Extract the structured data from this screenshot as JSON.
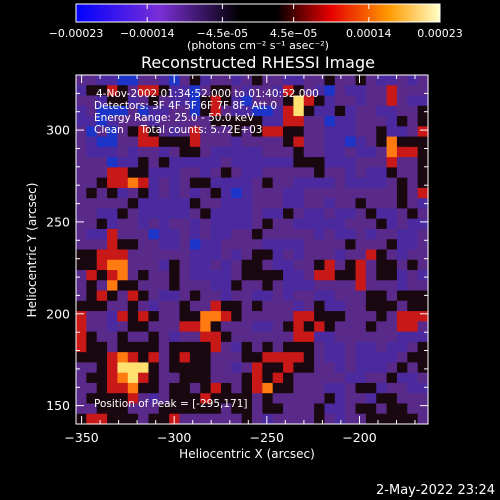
{
  "chart_data": {
    "type": "heatmap",
    "title": "Reconstructed RHESSI Image",
    "info_lines": [
      "4-Nov-2002 01:34:52.000 to 01:40:52.000",
      "Detectors: 3F 4F 5F 6F 7F 8F, Att 0",
      "Energy Range: 25.0 - 50.0 keV",
      "Clean     Total counts: 5.72E+03"
    ],
    "peak_label": "Position of Peak = [-295,171]",
    "xlabel": "Heliocentric X (arcsec)",
    "ylabel": "Heliocentric Y (arcsec)",
    "xlim": [
      -353,
      -163
    ],
    "ylim": [
      140,
      330
    ],
    "xticks": [
      -350,
      -300,
      -250,
      -200
    ],
    "yticks": [
      150,
      200,
      250,
      300
    ],
    "colorbar": {
      "label": "(photons cm⁻² s⁻¹ asec⁻²)",
      "range": [
        -0.00023,
        0.00023
      ],
      "ticks": [
        "-0.00023",
        "-0.00014",
        "-4.5e-05",
        "4.5e-05",
        "0.00014",
        "0.00023"
      ],
      "ticks_values": [
        -0.00023,
        -0.00014,
        -4.5e-05,
        4.5e-05,
        0.00014,
        0.00023
      ]
    },
    "grid_rows": [
      "3322113321342332343322334334322323",
      "2445435542213443233254321322335333",
      "3324423432214542133347542332335322",
      "2311131223314532211257422423322334",
      "2212333233333444442255331223332434",
      "3131345432353334345544332223342235",
      "3211335544453332333345332212346444",
      "3222323323443222223334332232236554",
      "3331224342222232222224442223335334",
      "3335544222332343223333343323224334",
      "3345565232344222234332222322223434",
      "3434234232323421233322333333333435",
      "3333342222243322233322332334333432",
      "3322432222234222232243223223422343",
      "3342332323323222234332222233342322",
      "3225333122323223343333323223233223",
      "3335443322312233332222333343334223",
      "4455533333322232344232333233543233",
      "4456633324322323443223345345344343",
      "3545634334322223444422355445344232",
      "3436443334333224334322233335333233",
      "3454354322343323322323322333443444",
      "4443343233433544343332342233444344",
      "5332545433446654333335544433343555",
      "5332344333556433322345454333433553",
      "5433433432335543333335522333333222",
      "5443444434444532434344432232232234",
      "4445654534544333445555432232222344",
      "3345777434444332354454433232223434",
      "3445675433444333454543333322334223",
      "3345564434434543456443332234423322",
      "3444453234445444434333334233244333",
      "3344433344444434434433342234434433",
      "4554443445333333432333343233444443"
    ]
  },
  "footer_timestamp": "2-May-2022 23:24"
}
